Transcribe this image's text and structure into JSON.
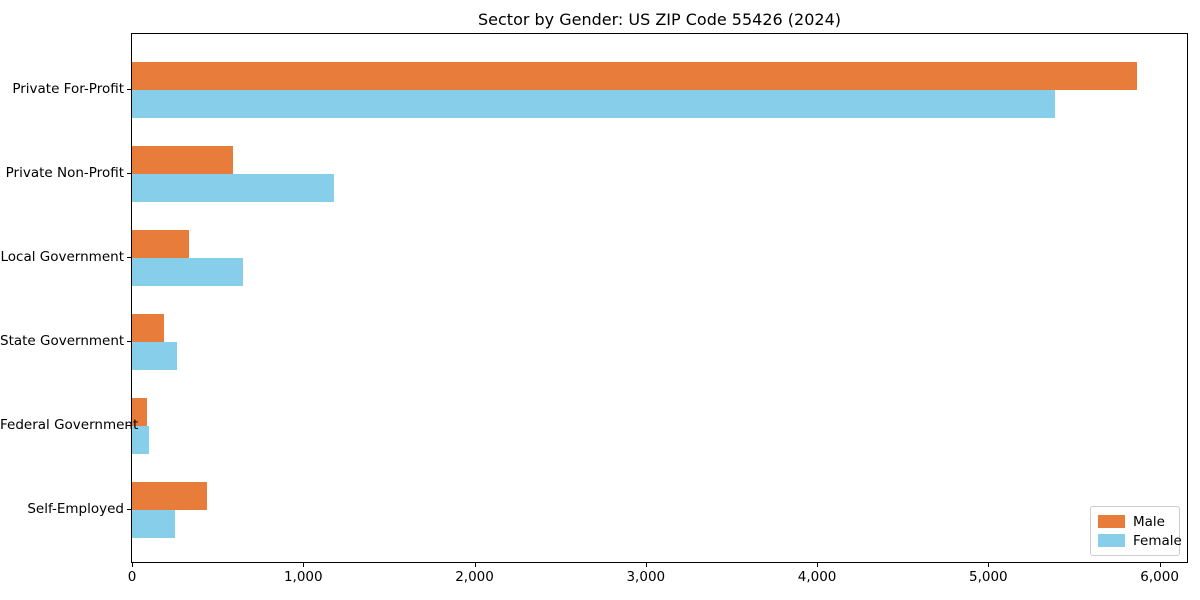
{
  "chart_data": {
    "type": "bar",
    "orientation": "horizontal",
    "title": "Sector by Gender: US ZIP Code 55426 (2024)",
    "categories": [
      "Private For-Profit",
      "Private Non-Profit",
      "Local Government",
      "State Government",
      "Federal Government",
      "Self-Employed"
    ],
    "series": [
      {
        "name": "Male",
        "color": "#e87d3b",
        "values": [
          5870,
          590,
          335,
          185,
          85,
          435
        ]
      },
      {
        "name": "Female",
        "color": "#87ceeb",
        "values": [
          5390,
          1180,
          650,
          265,
          100,
          250
        ]
      }
    ],
    "xlabel": "",
    "ylabel": "",
    "xlim": [
      0,
      6160
    ],
    "xticks": [
      0,
      1000,
      2000,
      3000,
      4000,
      5000,
      6000
    ],
    "xtick_labels": [
      "0",
      "1,000",
      "2,000",
      "3,000",
      "4,000",
      "5,000",
      "6,000"
    ],
    "grid": false,
    "legend": {
      "position": "lower-right"
    }
  }
}
